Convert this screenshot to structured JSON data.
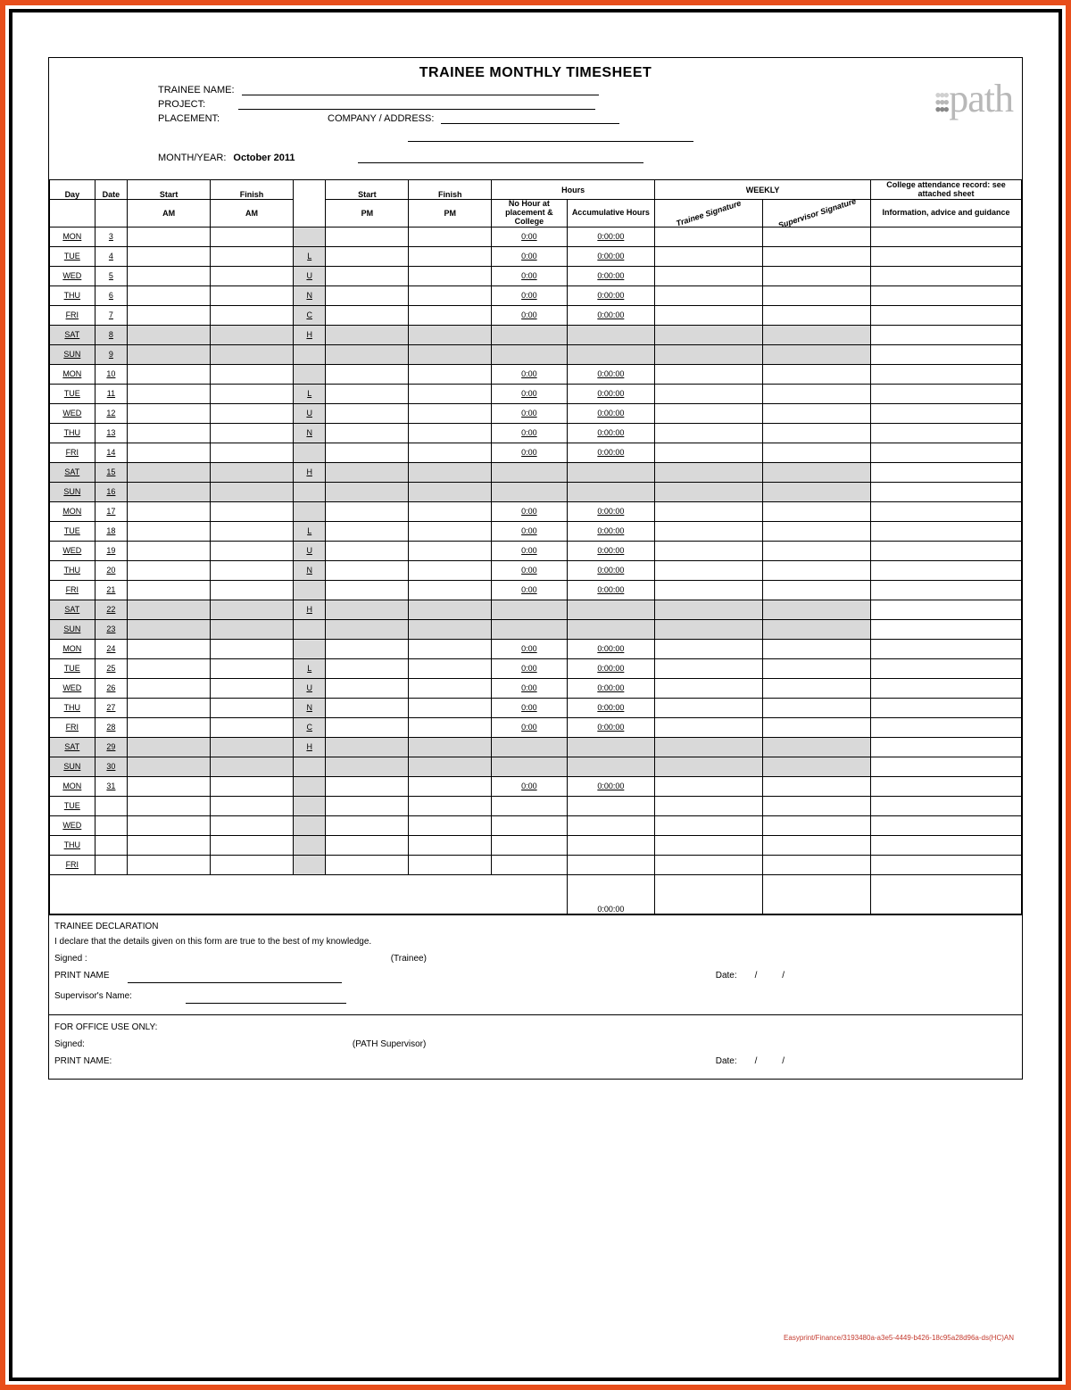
{
  "title": "TRAINEE MONTHLY TIMESHEET",
  "header": {
    "trainee_name_label": "TRAINEE NAME:",
    "project_label": "PROJECT:",
    "placement_label": "PLACEMENT:",
    "company_label": "COMPANY / ADDRESS:",
    "month_label": "MONTH/YEAR:",
    "month_value": "October 2011",
    "logo_text": "path"
  },
  "columns": {
    "day": "Day",
    "date": "Date",
    "start": "Start",
    "finish": "Finish",
    "am": "AM",
    "pm": "PM",
    "hours": "Hours",
    "no_hour": "No Hour at placement & College",
    "accum": "Accumulative Hours",
    "weekly": "WEEKLY",
    "sig_trainee": "Trainee Signature",
    "sig_super": "Supervisor Signature",
    "college": "College attendance record: see attached sheet",
    "info": "Information, advice and guidance"
  },
  "rows": [
    {
      "day": "MON",
      "date": "3",
      "mid": "",
      "h1": "0:00",
      "h2": "0:00:00",
      "weekend": false
    },
    {
      "day": "TUE",
      "date": "4",
      "mid": "L",
      "h1": "0:00",
      "h2": "0:00:00",
      "weekend": false
    },
    {
      "day": "WED",
      "date": "5",
      "mid": "U",
      "h1": "0:00",
      "h2": "0:00:00",
      "weekend": false
    },
    {
      "day": "THU",
      "date": "6",
      "mid": "N",
      "h1": "0:00",
      "h2": "0:00:00",
      "weekend": false
    },
    {
      "day": "FRI",
      "date": "7",
      "mid": "C",
      "h1": "0:00",
      "h2": "0:00:00",
      "weekend": false
    },
    {
      "day": "SAT",
      "date": "8",
      "mid": "H",
      "h1": "",
      "h2": "",
      "weekend": true
    },
    {
      "day": "SUN",
      "date": "9",
      "mid": "",
      "h1": "",
      "h2": "",
      "weekend": true
    },
    {
      "day": "MON",
      "date": "10",
      "mid": "",
      "h1": "0:00",
      "h2": "0:00:00",
      "weekend": false
    },
    {
      "day": "TUE",
      "date": "11",
      "mid": "L",
      "h1": "0:00",
      "h2": "0:00:00",
      "weekend": false
    },
    {
      "day": "WED",
      "date": "12",
      "mid": "U",
      "h1": "0:00",
      "h2": "0:00:00",
      "weekend": false
    },
    {
      "day": "THU",
      "date": "13",
      "mid": "N",
      "h1": "0:00",
      "h2": "0:00:00",
      "weekend": false
    },
    {
      "day": "FRI",
      "date": "14",
      "mid": "",
      "h1": "0:00",
      "h2": "0:00:00",
      "weekend": false
    },
    {
      "day": "SAT",
      "date": "15",
      "mid": "H",
      "h1": "",
      "h2": "",
      "weekend": true
    },
    {
      "day": "SUN",
      "date": "16",
      "mid": "",
      "h1": "",
      "h2": "",
      "weekend": true
    },
    {
      "day": "MON",
      "date": "17",
      "mid": "",
      "h1": "0:00",
      "h2": "0:00:00",
      "weekend": false
    },
    {
      "day": "TUE",
      "date": "18",
      "mid": "L",
      "h1": "0:00",
      "h2": "0:00:00",
      "weekend": false
    },
    {
      "day": "WED",
      "date": "19",
      "mid": "U",
      "h1": "0:00",
      "h2": "0:00:00",
      "weekend": false
    },
    {
      "day": "THU",
      "date": "20",
      "mid": "N",
      "h1": "0:00",
      "h2": "0:00:00",
      "weekend": false
    },
    {
      "day": "FRI",
      "date": "21",
      "mid": "",
      "h1": "0:00",
      "h2": "0:00:00",
      "weekend": false
    },
    {
      "day": "SAT",
      "date": "22",
      "mid": "H",
      "h1": "",
      "h2": "",
      "weekend": true
    },
    {
      "day": "SUN",
      "date": "23",
      "mid": "",
      "h1": "",
      "h2": "",
      "weekend": true
    },
    {
      "day": "MON",
      "date": "24",
      "mid": "",
      "h1": "0:00",
      "h2": "0:00:00",
      "weekend": false
    },
    {
      "day": "TUE",
      "date": "25",
      "mid": "L",
      "h1": "0:00",
      "h2": "0:00:00",
      "weekend": false
    },
    {
      "day": "WED",
      "date": "26",
      "mid": "U",
      "h1": "0:00",
      "h2": "0:00:00",
      "weekend": false
    },
    {
      "day": "THU",
      "date": "27",
      "mid": "N",
      "h1": "0:00",
      "h2": "0:00:00",
      "weekend": false
    },
    {
      "day": "FRI",
      "date": "28",
      "mid": "C",
      "h1": "0:00",
      "h2": "0:00:00",
      "weekend": false
    },
    {
      "day": "SAT",
      "date": "29",
      "mid": "H",
      "h1": "",
      "h2": "",
      "weekend": true
    },
    {
      "day": "SUN",
      "date": "30",
      "mid": "",
      "h1": "",
      "h2": "",
      "weekend": true
    },
    {
      "day": "MON",
      "date": "31",
      "mid": "",
      "h1": "0:00",
      "h2": "0:00:00",
      "weekend": false
    },
    {
      "day": "TUE",
      "date": "",
      "mid": "",
      "h1": "",
      "h2": "",
      "weekend": false
    },
    {
      "day": "WED",
      "date": "",
      "mid": "",
      "h1": "",
      "h2": "",
      "weekend": false
    },
    {
      "day": "THU",
      "date": "",
      "mid": "",
      "h1": "",
      "h2": "",
      "weekend": false
    },
    {
      "day": "FRI",
      "date": "",
      "mid": "",
      "h1": "",
      "h2": "",
      "weekend": false
    }
  ],
  "total": "0:00:00",
  "declaration": {
    "heading": "TRAINEE DECLARATION",
    "text": "I declare that the details given on this form are true to the best of my knowledge.",
    "signed": "Signed :",
    "trainee": "(Trainee)",
    "print": "PRINT NAME",
    "date": "Date:",
    "slashes": "/          /",
    "super": "Supervisor's Name:"
  },
  "office": {
    "heading": "FOR OFFICE USE ONLY:",
    "signed": "Signed:",
    "role": "(PATH Supervisor)",
    "print": "PRINT NAME:",
    "date": "Date:",
    "slashes": "/          /"
  },
  "footer_code": "Easyprint/Finance/3193480a-a3e5-4449-b426-18c95a28d96a-ds(HC)AN",
  "style": {
    "accent": "#e84e1b",
    "shade": "#d9d9d9",
    "logo_color": "#b8b8b8"
  }
}
